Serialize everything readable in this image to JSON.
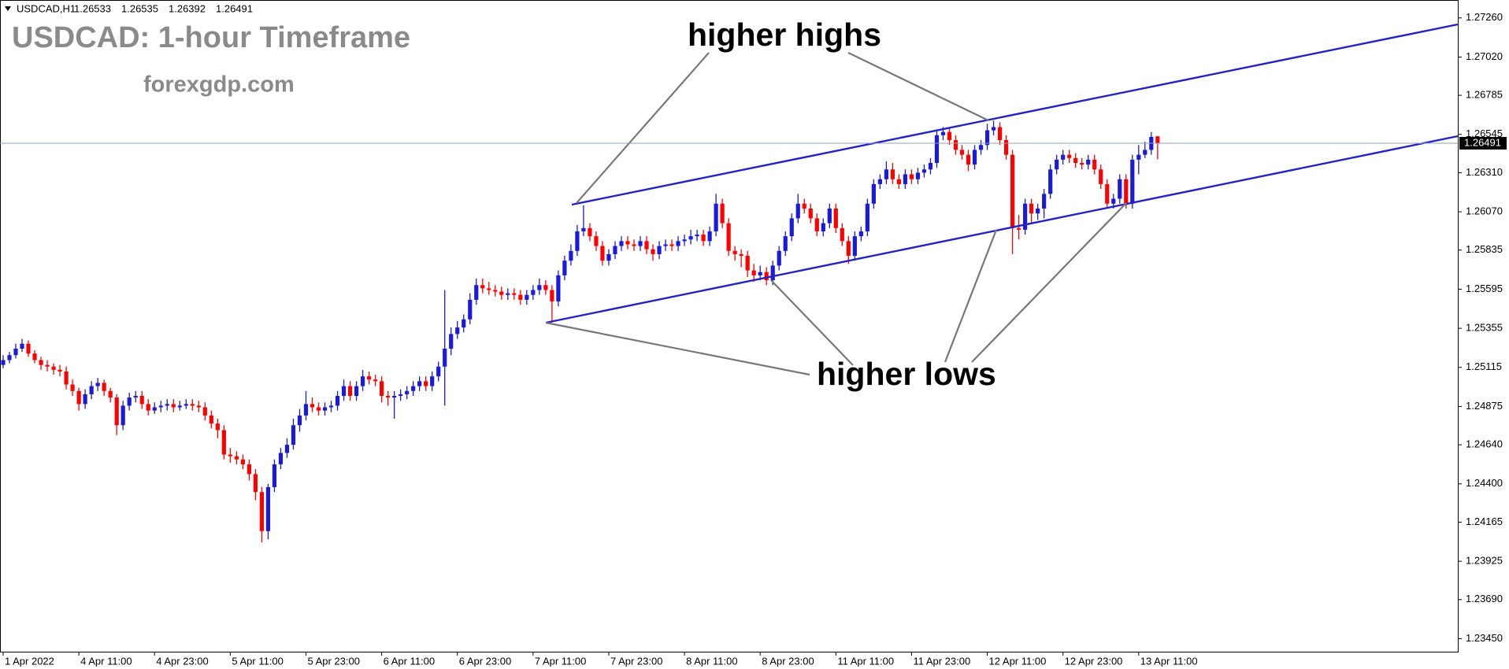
{
  "chart_data": {
    "type": "candlestick",
    "symbol": "USDCAD,H1",
    "title": "USDCAD: 1-hour Timeframe",
    "subtitle": "forexgdp.com",
    "annotations": [
      "higher highs",
      "higher lows"
    ],
    "up_color": "#1a1ad9",
    "down_color": "#ff0000",
    "price_line_color": "#8fa3b8",
    "ylim": [
      1.2337,
      1.2737
    ],
    "yticks": [
      {
        "value": 1.2726,
        "label": "1.27260"
      },
      {
        "value": 1.2702,
        "label": "1.27020"
      },
      1.26785,
      1.26545,
      {
        "value": 1.2631,
        "label": "1.26310"
      },
      {
        "value": 1.2607,
        "label": "1.26070"
      },
      1.25835,
      1.25595,
      1.25355,
      1.25115,
      1.24875,
      {
        "value": 1.2464,
        "label": "1.24640"
      },
      {
        "value": 1.244,
        "label": "1.24400"
      },
      1.24165,
      1.23925,
      {
        "value": 1.2369,
        "label": "1.23690"
      },
      {
        "value": 1.2345,
        "label": "1.23450"
      }
    ],
    "categories": [
      "1 Apr 2022",
      null,
      null,
      null,
      null,
      null,
      null,
      null,
      null,
      null,
      null,
      null,
      "4 Apr 11:00",
      null,
      null,
      null,
      null,
      null,
      null,
      null,
      null,
      null,
      null,
      null,
      "4 Apr 23:00",
      null,
      null,
      null,
      null,
      null,
      null,
      null,
      null,
      null,
      null,
      null,
      "5 Apr 11:00",
      null,
      null,
      null,
      null,
      null,
      null,
      null,
      null,
      null,
      null,
      null,
      "5 Apr 23:00",
      null,
      null,
      null,
      null,
      null,
      null,
      null,
      null,
      null,
      null,
      null,
      "6 Apr 11:00",
      null,
      null,
      null,
      null,
      null,
      null,
      null,
      null,
      null,
      null,
      null,
      "6 Apr 23:00",
      null,
      null,
      null,
      null,
      null,
      null,
      null,
      null,
      null,
      null,
      null,
      "7 Apr 11:00",
      null,
      null,
      null,
      null,
      null,
      null,
      null,
      null,
      null,
      null,
      null,
      "7 Apr 23:00",
      null,
      null,
      null,
      null,
      null,
      null,
      null,
      null,
      null,
      null,
      null,
      "8 Apr 11:00",
      null,
      null,
      null,
      null,
      null,
      null,
      null,
      null,
      null,
      null,
      null,
      "8 Apr 23:00",
      null,
      null,
      null,
      null,
      null,
      null,
      null,
      null,
      null,
      null,
      null,
      "11 Apr 11:00",
      null,
      null,
      null,
      null,
      null,
      null,
      null,
      null,
      null,
      null,
      null,
      "11 Apr 23:00",
      null,
      null,
      null,
      null,
      null,
      null,
      null,
      null,
      null,
      null,
      null,
      "12 Apr 11:00",
      null,
      null,
      null,
      null,
      null,
      null,
      null,
      null,
      null,
      null,
      null,
      "12 Apr 23:00",
      null,
      null,
      null,
      null,
      null,
      null,
      null,
      null,
      null,
      null,
      null,
      "13 Apr 11:00",
      null,
      null,
      null
    ],
    "open": [
      1.2513,
      1.2516,
      1.2519,
      1.2523,
      1.2526,
      1.252,
      1.2516,
      1.2513,
      1.2512,
      1.251,
      1.2509,
      1.2501,
      1.2497,
      1.2489,
      1.2495,
      1.25,
      1.2502,
      1.2497,
      1.2493,
      1.2476,
      1.2488,
      1.2493,
      1.2494,
      1.2489,
      1.2485,
      1.2487,
      1.2488,
      1.2489,
      1.2487,
      1.2488,
      1.2489,
      1.2488,
      1.2487,
      1.2482,
      1.2477,
      1.2473,
      1.2458,
      1.2457,
      1.2455,
      1.2452,
      1.2446,
      1.2435,
      1.2411,
      1.2438,
      1.2452,
      1.2459,
      1.2464,
      1.2476,
      1.2482,
      1.2489,
      1.2487,
      1.2485,
      1.2487,
      1.2488,
      1.2494,
      1.25,
      1.2494,
      1.25,
      1.2506,
      1.2504,
      1.2503,
      1.2494,
      1.2493,
      1.2494,
      1.2495,
      1.2497,
      1.25,
      1.2503,
      1.25,
      1.2506,
      1.2512,
      1.2523,
      1.2532,
      1.2536,
      1.2541,
      1.2553,
      1.2562,
      1.256,
      1.2559,
      1.2558,
      1.2556,
      1.2557,
      1.2556,
      1.2553,
      1.2556,
      1.2559,
      1.2562,
      1.2559,
      1.2552,
      1.2568,
      1.2577,
      1.2583,
      1.2595,
      1.2597,
      1.2592,
      1.2586,
      1.2577,
      1.2581,
      1.2586,
      1.2589,
      1.2587,
      1.2586,
      1.2589,
      1.2584,
      1.2581,
      1.2586,
      1.2587,
      1.2586,
      1.2589,
      1.259,
      1.2592,
      1.2593,
      1.2589,
      1.2595,
      1.2612,
      1.26,
      1.2583,
      1.2581,
      1.258,
      1.2571,
      1.2568,
      1.257,
      1.2565,
      1.2574,
      1.2583,
      1.2592,
      1.2603,
      1.2612,
      1.2609,
      1.2603,
      1.2595,
      1.26,
      1.2609,
      1.2597,
      1.2589,
      1.258,
      1.2592,
      1.2595,
      1.2612,
      1.2624,
      1.2627,
      1.2633,
      1.2627,
      1.2624,
      1.263,
      1.2627,
      1.2631,
      1.2633,
      1.2637,
      1.2654,
      1.2656,
      1.2651,
      1.2645,
      1.2642,
      1.2636,
      1.2645,
      1.2648,
      1.2657,
      1.2659,
      1.2651,
      1.2642,
      1.2597,
      1.2596,
      1.2612,
      1.2606,
      1.2609,
      1.2618,
      1.2633,
      1.2639,
      1.2642,
      1.264,
      1.2637,
      1.2636,
      1.2639,
      1.2633,
      1.2624,
      1.2612,
      1.2615,
      1.2627,
      1.2612,
      1.2639,
      1.2642,
      1.2645,
      1.26533
    ],
    "high": [
      1.2519,
      1.2521,
      1.2526,
      1.2529,
      1.2528,
      1.2522,
      1.2518,
      1.2516,
      1.2514,
      1.2513,
      1.2512,
      1.2504,
      1.2499,
      1.2498,
      1.2503,
      1.2505,
      1.2504,
      1.2499,
      1.2495,
      1.2491,
      1.2496,
      1.2497,
      1.2497,
      1.2492,
      1.249,
      1.2491,
      1.2492,
      1.2492,
      1.2491,
      1.2492,
      1.2492,
      1.2491,
      1.249,
      1.2485,
      1.248,
      1.2476,
      1.2462,
      1.246,
      1.2458,
      1.2455,
      1.2449,
      1.2438,
      1.244,
      1.2455,
      1.2462,
      1.2468,
      1.248,
      1.2486,
      1.2497,
      1.2493,
      1.249,
      1.249,
      1.2491,
      1.2497,
      1.2504,
      1.2503,
      1.2503,
      1.251,
      1.2509,
      1.2507,
      1.2506,
      1.2497,
      1.2497,
      1.2498,
      1.25,
      1.2503,
      1.2506,
      1.2506,
      1.2509,
      1.2515,
      1.2559,
      1.2536,
      1.254,
      1.2544,
      1.2557,
      1.2566,
      1.2566,
      1.2564,
      1.2562,
      1.2561,
      1.256,
      1.256,
      1.2559,
      1.2559,
      1.2562,
      1.2566,
      1.2565,
      1.2562,
      1.2571,
      1.258,
      1.2587,
      1.2599,
      1.2611,
      1.26,
      1.2595,
      1.2589,
      1.2584,
      1.2589,
      1.2592,
      1.2592,
      1.259,
      1.2592,
      1.2592,
      1.2587,
      1.2589,
      1.259,
      1.259,
      1.2592,
      1.2593,
      1.2596,
      1.2596,
      1.2596,
      1.2598,
      1.2618,
      1.2615,
      1.2603,
      1.2586,
      1.2584,
      1.2583,
      1.2575,
      1.2574,
      1.2573,
      1.2577,
      1.2586,
      1.2595,
      1.2606,
      1.2618,
      1.2615,
      1.2612,
      1.2606,
      1.2603,
      1.2612,
      1.2612,
      1.26,
      1.2592,
      1.2595,
      1.2598,
      1.2615,
      1.2627,
      1.263,
      1.2638,
      1.2637,
      1.263,
      1.2633,
      1.2633,
      1.2634,
      1.2636,
      1.264,
      1.2657,
      1.2659,
      1.2659,
      1.2654,
      1.2648,
      1.2645,
      1.2648,
      1.2651,
      1.2661,
      1.2663,
      1.2662,
      1.2654,
      1.2645,
      1.2605,
      1.2615,
      1.2615,
      1.2612,
      1.2621,
      1.2636,
      1.2642,
      1.2645,
      1.2645,
      1.2643,
      1.264,
      1.2642,
      1.2642,
      1.2636,
      1.2627,
      1.2618,
      1.263,
      1.263,
      1.2642,
      1.2648,
      1.265,
      1.2656,
      1.26535
    ],
    "low": [
      1.2511,
      1.2514,
      1.2517,
      1.2521,
      1.2518,
      1.2514,
      1.251,
      1.2509,
      1.2507,
      1.2506,
      1.2498,
      1.2494,
      1.2485,
      1.2486,
      1.2492,
      1.2497,
      1.2494,
      1.249,
      1.247,
      1.2473,
      1.2485,
      1.249,
      1.2486,
      1.2482,
      1.2483,
      1.2484,
      1.2485,
      1.2484,
      1.2485,
      1.2486,
      1.2485,
      1.2484,
      1.2479,
      1.2474,
      1.2468,
      1.2455,
      1.2453,
      1.2452,
      1.2449,
      1.2442,
      1.243,
      1.2404,
      1.2406,
      1.2435,
      1.2449,
      1.2456,
      1.2461,
      1.2472,
      1.2479,
      1.2484,
      1.2482,
      1.2482,
      1.2484,
      1.2485,
      1.2491,
      1.2491,
      1.2491,
      1.2497,
      1.2501,
      1.25,
      1.249,
      1.2488,
      1.248,
      1.2491,
      1.2492,
      1.2494,
      1.2497,
      1.2497,
      1.2497,
      1.2503,
      1.2488,
      1.2519,
      1.2529,
      1.2533,
      1.2538,
      1.255,
      1.2557,
      1.2556,
      1.2555,
      1.2553,
      1.2553,
      1.2553,
      1.255,
      1.255,
      1.2553,
      1.2556,
      1.2556,
      1.2539,
      1.2549,
      1.2565,
      1.2574,
      1.258,
      1.2592,
      1.2589,
      1.2583,
      1.2574,
      1.2574,
      1.2578,
      1.2583,
      1.2584,
      1.2583,
      1.2583,
      1.2581,
      1.2577,
      1.2578,
      1.2583,
      1.2583,
      1.2583,
      1.2586,
      1.2587,
      1.2589,
      1.2586,
      1.2586,
      1.2592,
      1.2597,
      1.258,
      1.2577,
      1.2573,
      1.2567,
      1.2564,
      1.2565,
      1.2562,
      1.2562,
      1.2571,
      1.258,
      1.2589,
      1.26,
      1.2606,
      1.26,
      1.2592,
      1.2592,
      1.2597,
      1.2594,
      1.2586,
      1.2575,
      1.2577,
      1.2589,
      1.2592,
      1.2609,
      1.2621,
      1.2624,
      1.2624,
      1.2621,
      1.2621,
      1.2624,
      1.2624,
      1.2628,
      1.263,
      1.2634,
      1.2651,
      1.2648,
      1.2642,
      1.2639,
      1.2632,
      1.2633,
      1.2642,
      1.2645,
      1.2654,
      1.2648,
      1.2639,
      1.2581,
      1.259,
      1.2593,
      1.26,
      1.2602,
      1.2603,
      1.2615,
      1.263,
      1.2636,
      1.2637,
      1.2634,
      1.2633,
      1.2633,
      1.263,
      1.2621,
      1.2609,
      1.2609,
      1.2612,
      1.2609,
      1.2609,
      1.263,
      1.264,
      1.2642,
      1.26392
    ],
    "close": [
      1.2516,
      1.2519,
      1.2523,
      1.2526,
      1.252,
      1.2516,
      1.2513,
      1.2512,
      1.251,
      1.2509,
      1.2501,
      1.2497,
      1.2489,
      1.2495,
      1.25,
      1.2502,
      1.2497,
      1.2493,
      1.2476,
      1.2488,
      1.2493,
      1.2494,
      1.2489,
      1.2485,
      1.2487,
      1.2488,
      1.2489,
      1.2487,
      1.2488,
      1.2489,
      1.2488,
      1.2487,
      1.2482,
      1.2477,
      1.2473,
      1.2458,
      1.2457,
      1.2455,
      1.2452,
      1.2446,
      1.2435,
      1.2411,
      1.2438,
      1.2452,
      1.2459,
      1.2464,
      1.2476,
      1.2482,
      1.2489,
      1.2487,
      1.2485,
      1.2487,
      1.2488,
      1.2494,
      1.25,
      1.2494,
      1.25,
      1.2506,
      1.2504,
      1.2503,
      1.2494,
      1.2493,
      1.2494,
      1.2495,
      1.2497,
      1.25,
      1.2503,
      1.25,
      1.2506,
      1.2512,
      1.2523,
      1.2532,
      1.2536,
      1.2541,
      1.2553,
      1.2562,
      1.256,
      1.2559,
      1.2558,
      1.2556,
      1.2557,
      1.2556,
      1.2553,
      1.2556,
      1.2559,
      1.2562,
      1.2559,
      1.2552,
      1.2568,
      1.2577,
      1.2583,
      1.2595,
      1.2597,
      1.2592,
      1.2586,
      1.2577,
      1.2581,
      1.2586,
      1.2589,
      1.2587,
      1.2586,
      1.2589,
      1.2584,
      1.2581,
      1.2586,
      1.2587,
      1.2586,
      1.2589,
      1.259,
      1.2592,
      1.2593,
      1.2589,
      1.2595,
      1.2612,
      1.26,
      1.2583,
      1.2581,
      1.258,
      1.2571,
      1.2568,
      1.257,
      1.2565,
      1.2574,
      1.2583,
      1.2592,
      1.2603,
      1.2612,
      1.2609,
      1.2603,
      1.2595,
      1.26,
      1.2609,
      1.2597,
      1.2589,
      1.258,
      1.2592,
      1.2595,
      1.2612,
      1.2624,
      1.2627,
      1.2633,
      1.2627,
      1.2624,
      1.263,
      1.2627,
      1.2631,
      1.2633,
      1.2637,
      1.2654,
      1.2656,
      1.2651,
      1.2645,
      1.2642,
      1.2636,
      1.2645,
      1.2648,
      1.2657,
      1.2659,
      1.2651,
      1.2642,
      1.2597,
      1.2596,
      1.2612,
      1.2606,
      1.2609,
      1.2618,
      1.2633,
      1.2639,
      1.2642,
      1.264,
      1.2637,
      1.2636,
      1.2639,
      1.2633,
      1.2624,
      1.2612,
      1.2615,
      1.2627,
      1.2612,
      1.2639,
      1.2642,
      1.2645,
      1.2653,
      1.26491
    ]
  }
}
